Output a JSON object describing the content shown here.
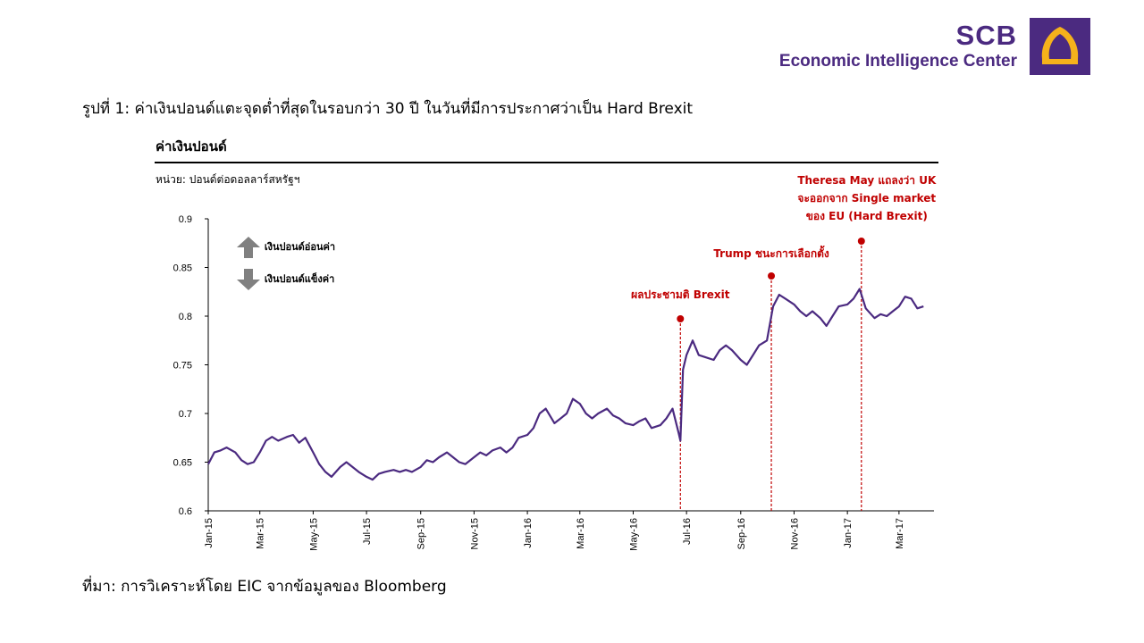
{
  "header": {
    "brand_name": "SCB",
    "brand_tagline": "Economic Intelligence Center",
    "logo_icon": "scb-temple-logo-icon",
    "brand_color": "#4b2a80",
    "logo_accent": "#f5b21b"
  },
  "figure_title": "รูปที่ 1: ค่าเงินปอนด์แตะจุดต่ำที่สุดในรอบกว่า 30 ปี ในวันที่มีการประกาศว่าเป็น Hard Brexit",
  "chart_title": "ค่าเงินปอนด์",
  "unit_label": "หน่วย: ปอนด์ต่อดอลลาร์สหรัฐฯ",
  "legend": [
    {
      "icon": "arrow-up-icon",
      "label": "เงินปอนด์อ่อนค่า"
    },
    {
      "icon": "arrow-down-icon",
      "label": "เงินปอนด์แข็งค่า"
    }
  ],
  "source_note": "ที่มา: การวิเคราะห์โดย EIC จากข้อมูลของ Bloomberg",
  "chart_data": {
    "type": "line",
    "line_color": "#4b2a80",
    "annotation_color": "#c00000",
    "ylim": [
      0.6,
      0.9
    ],
    "y_ticks": [
      "0.6",
      "0.65",
      "0.7",
      "0.75",
      "0.8",
      "0.85",
      "0.9"
    ],
    "x_ticks": [
      "Jan-15",
      "Mar-15",
      "May-15",
      "Jul-15",
      "Sep-15",
      "Nov-15",
      "Jan-16",
      "Mar-16",
      "May-16",
      "Jul-16",
      "Sep-16",
      "Nov-16",
      "Jan-17",
      "Mar-17"
    ],
    "grid": false,
    "series": [
      {
        "points": [
          [
            "2015-01-01",
            0.648
          ],
          [
            "2015-01-08",
            0.66
          ],
          [
            "2015-01-15",
            0.662
          ],
          [
            "2015-01-22",
            0.665
          ],
          [
            "2015-02-01",
            0.66
          ],
          [
            "2015-02-08",
            0.652
          ],
          [
            "2015-02-15",
            0.648
          ],
          [
            "2015-02-22",
            0.65
          ],
          [
            "2015-03-01",
            0.66
          ],
          [
            "2015-03-08",
            0.672
          ],
          [
            "2015-03-15",
            0.676
          ],
          [
            "2015-03-22",
            0.672
          ],
          [
            "2015-04-01",
            0.676
          ],
          [
            "2015-04-08",
            0.678
          ],
          [
            "2015-04-15",
            0.67
          ],
          [
            "2015-04-22",
            0.675
          ],
          [
            "2015-05-01",
            0.66
          ],
          [
            "2015-05-08",
            0.648
          ],
          [
            "2015-05-15",
            0.64
          ],
          [
            "2015-05-22",
            0.635
          ],
          [
            "2015-06-01",
            0.645
          ],
          [
            "2015-06-08",
            0.65
          ],
          [
            "2015-06-15",
            0.645
          ],
          [
            "2015-06-22",
            0.64
          ],
          [
            "2015-07-01",
            0.635
          ],
          [
            "2015-07-08",
            0.632
          ],
          [
            "2015-07-15",
            0.638
          ],
          [
            "2015-07-22",
            0.64
          ],
          [
            "2015-08-01",
            0.642
          ],
          [
            "2015-08-08",
            0.64
          ],
          [
            "2015-08-15",
            0.642
          ],
          [
            "2015-08-22",
            0.64
          ],
          [
            "2015-09-01",
            0.645
          ],
          [
            "2015-09-08",
            0.652
          ],
          [
            "2015-09-15",
            0.65
          ],
          [
            "2015-09-22",
            0.655
          ],
          [
            "2015-10-01",
            0.66
          ],
          [
            "2015-10-08",
            0.655
          ],
          [
            "2015-10-15",
            0.65
          ],
          [
            "2015-10-22",
            0.648
          ],
          [
            "2015-11-01",
            0.655
          ],
          [
            "2015-11-08",
            0.66
          ],
          [
            "2015-11-15",
            0.657
          ],
          [
            "2015-11-22",
            0.662
          ],
          [
            "2015-12-01",
            0.665
          ],
          [
            "2015-12-08",
            0.66
          ],
          [
            "2015-12-15",
            0.665
          ],
          [
            "2015-12-22",
            0.675
          ],
          [
            "2016-01-01",
            0.678
          ],
          [
            "2016-01-08",
            0.685
          ],
          [
            "2016-01-15",
            0.7
          ],
          [
            "2016-01-22",
            0.705
          ],
          [
            "2016-02-01",
            0.69
          ],
          [
            "2016-02-08",
            0.695
          ],
          [
            "2016-02-15",
            0.7
          ],
          [
            "2016-02-22",
            0.715
          ],
          [
            "2016-03-01",
            0.71
          ],
          [
            "2016-03-08",
            0.7
          ],
          [
            "2016-03-15",
            0.695
          ],
          [
            "2016-03-22",
            0.7
          ],
          [
            "2016-04-01",
            0.705
          ],
          [
            "2016-04-08",
            0.698
          ],
          [
            "2016-04-15",
            0.695
          ],
          [
            "2016-04-22",
            0.69
          ],
          [
            "2016-05-01",
            0.688
          ],
          [
            "2016-05-08",
            0.692
          ],
          [
            "2016-05-15",
            0.695
          ],
          [
            "2016-05-22",
            0.685
          ],
          [
            "2016-06-01",
            0.688
          ],
          [
            "2016-06-08",
            0.695
          ],
          [
            "2016-06-15",
            0.705
          ],
          [
            "2016-06-22",
            0.68
          ],
          [
            "2016-06-24",
            0.672
          ],
          [
            "2016-06-27",
            0.745
          ],
          [
            "2016-07-01",
            0.76
          ],
          [
            "2016-07-08",
            0.775
          ],
          [
            "2016-07-15",
            0.76
          ],
          [
            "2016-07-22",
            0.758
          ],
          [
            "2016-08-01",
            0.755
          ],
          [
            "2016-08-08",
            0.765
          ],
          [
            "2016-08-15",
            0.77
          ],
          [
            "2016-08-22",
            0.765
          ],
          [
            "2016-09-01",
            0.755
          ],
          [
            "2016-09-08",
            0.75
          ],
          [
            "2016-09-15",
            0.76
          ],
          [
            "2016-09-22",
            0.77
          ],
          [
            "2016-10-01",
            0.775
          ],
          [
            "2016-10-08",
            0.81
          ],
          [
            "2016-10-15",
            0.822
          ],
          [
            "2016-10-22",
            0.818
          ],
          [
            "2016-11-01",
            0.812
          ],
          [
            "2016-11-08",
            0.805
          ],
          [
            "2016-11-15",
            0.8
          ],
          [
            "2016-11-22",
            0.805
          ],
          [
            "2016-12-01",
            0.798
          ],
          [
            "2016-12-08",
            0.79
          ],
          [
            "2016-12-15",
            0.8
          ],
          [
            "2016-12-22",
            0.81
          ],
          [
            "2017-01-01",
            0.812
          ],
          [
            "2017-01-08",
            0.818
          ],
          [
            "2017-01-15",
            0.828
          ],
          [
            "2017-01-22",
            0.808
          ],
          [
            "2017-02-01",
            0.798
          ],
          [
            "2017-02-08",
            0.802
          ],
          [
            "2017-02-15",
            0.8
          ],
          [
            "2017-02-22",
            0.805
          ],
          [
            "2017-03-01",
            0.81
          ],
          [
            "2017-03-08",
            0.82
          ],
          [
            "2017-03-15",
            0.818
          ],
          [
            "2017-03-22",
            0.808
          ],
          [
            "2017-03-29",
            0.81
          ]
        ]
      }
    ],
    "annotations": [
      {
        "date": "2016-06-24",
        "label_lines": [
          "ผลประชามติ Brexit"
        ]
      },
      {
        "date": "2016-10-06",
        "label_lines": [
          "Trump ชนะการเลือกตั้ง"
        ]
      },
      {
        "date": "2017-01-17",
        "label_lines": [
          "Theresa May แถลงว่า UK",
          "จะออกจาก Single market",
          "ของ EU (Hard Brexit)"
        ]
      }
    ]
  }
}
